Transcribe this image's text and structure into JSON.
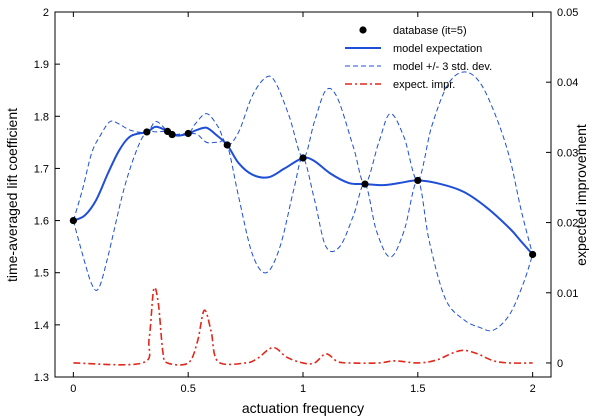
{
  "chart_data": {
    "type": "line",
    "xlabel": "actuation frequency",
    "ylabel_left": "time-averaged lift coefficient",
    "ylabel_right": "expected improvement",
    "xlim": [
      -0.08,
      2.08
    ],
    "ylim_left": [
      1.3,
      2.0
    ],
    "ylim_right": [
      -0.002,
      0.05
    ],
    "x_ticks": [
      0,
      0.5,
      1,
      1.5,
      2
    ],
    "y_left_ticks": [
      1.3,
      1.4,
      1.5,
      1.6,
      1.7,
      1.8,
      1.9,
      2.0
    ],
    "y_right_ticks": [
      0,
      0.01,
      0.02,
      0.03,
      0.04,
      0.05
    ],
    "x_tick_labels": [
      "0",
      "0.5",
      "1",
      "1.5",
      "2"
    ],
    "y_left_tick_labels": [
      "1.3",
      "1.4",
      "1.5",
      "1.6",
      "1.7",
      "1.8",
      "1.9",
      "2"
    ],
    "y_right_tick_labels": [
      "0",
      "0.01",
      "0.02",
      "0.03",
      "0.04",
      "0.05"
    ],
    "grid": false,
    "legend_position": "top-right",
    "series": [
      {
        "name": "database (it=5)",
        "style": "markers",
        "axis": "left",
        "color": "#000000",
        "points": [
          [
            0,
            1.6
          ],
          [
            0.32,
            1.77
          ],
          [
            0.41,
            1.771
          ],
          [
            0.43,
            1.765
          ],
          [
            0.5,
            1.767
          ],
          [
            0.67,
            1.745
          ],
          [
            1.0,
            1.72
          ],
          [
            1.27,
            1.67
          ],
          [
            1.5,
            1.677
          ],
          [
            2.0,
            1.535
          ]
        ]
      },
      {
        "name": "model expectation",
        "style": "solid",
        "axis": "left",
        "color": "#1f4fd6",
        "points": [
          [
            0,
            1.6
          ],
          [
            0.05,
            1.61
          ],
          [
            0.1,
            1.64
          ],
          [
            0.15,
            1.69
          ],
          [
            0.2,
            1.735
          ],
          [
            0.25,
            1.762
          ],
          [
            0.32,
            1.77
          ],
          [
            0.36,
            1.78
          ],
          [
            0.41,
            1.771
          ],
          [
            0.43,
            1.765
          ],
          [
            0.46,
            1.763
          ],
          [
            0.5,
            1.767
          ],
          [
            0.54,
            1.774
          ],
          [
            0.58,
            1.778
          ],
          [
            0.62,
            1.765
          ],
          [
            0.67,
            1.745
          ],
          [
            0.72,
            1.71
          ],
          [
            0.78,
            1.688
          ],
          [
            0.85,
            1.683
          ],
          [
            0.92,
            1.7
          ],
          [
            1.0,
            1.72
          ],
          [
            1.05,
            1.714
          ],
          [
            1.12,
            1.69
          ],
          [
            1.2,
            1.672
          ],
          [
            1.27,
            1.67
          ],
          [
            1.35,
            1.668
          ],
          [
            1.42,
            1.672
          ],
          [
            1.5,
            1.677
          ],
          [
            1.6,
            1.67
          ],
          [
            1.7,
            1.655
          ],
          [
            1.8,
            1.625
          ],
          [
            1.9,
            1.585
          ],
          [
            1.95,
            1.56
          ],
          [
            2.0,
            1.535
          ]
        ]
      },
      {
        "name": "model +/- 3 std. dev.",
        "style": "dashed",
        "axis": "left",
        "color": "#1f4fd6",
        "points": [
          [
            0,
            1.6
          ],
          [
            0.04,
            1.66
          ],
          [
            0.08,
            1.73
          ],
          [
            0.12,
            1.765
          ],
          [
            0.16,
            1.79
          ],
          [
            0.2,
            1.785
          ],
          [
            0.25,
            1.773
          ],
          [
            0.32,
            1.77
          ],
          [
            0.36,
            1.79
          ],
          [
            0.41,
            1.771
          ],
          [
            0.43,
            1.765
          ],
          [
            0.5,
            1.767
          ],
          [
            0.53,
            1.785
          ],
          [
            0.58,
            1.805
          ],
          [
            0.63,
            1.78
          ],
          [
            0.67,
            1.745
          ],
          [
            0.72,
            1.77
          ],
          [
            0.78,
            1.84
          ],
          [
            0.84,
            1.875
          ],
          [
            0.88,
            1.865
          ],
          [
            0.94,
            1.8
          ],
          [
            1.0,
            1.72
          ],
          [
            1.05,
            1.79
          ],
          [
            1.1,
            1.85
          ],
          [
            1.15,
            1.835
          ],
          [
            1.22,
            1.74
          ],
          [
            1.27,
            1.67
          ],
          [
            1.33,
            1.75
          ],
          [
            1.38,
            1.805
          ],
          [
            1.44,
            1.76
          ],
          [
            1.5,
            1.677
          ],
          [
            1.56,
            1.78
          ],
          [
            1.63,
            1.86
          ],
          [
            1.7,
            1.885
          ],
          [
            1.77,
            1.865
          ],
          [
            1.84,
            1.8
          ],
          [
            1.9,
            1.72
          ],
          [
            1.95,
            1.62
          ],
          [
            2.0,
            1.535
          ]
        ]
      },
      {
        "name": "model +/- 3 std. dev. (lower)",
        "style": "dashed",
        "axis": "left",
        "color": "#1f4fd6",
        "points": [
          [
            0,
            1.6
          ],
          [
            0.04,
            1.535
          ],
          [
            0.08,
            1.478
          ],
          [
            0.11,
            1.47
          ],
          [
            0.15,
            1.53
          ],
          [
            0.22,
            1.66
          ],
          [
            0.28,
            1.74
          ],
          [
            0.32,
            1.77
          ],
          [
            0.36,
            1.77
          ],
          [
            0.41,
            1.771
          ],
          [
            0.43,
            1.765
          ],
          [
            0.5,
            1.767
          ],
          [
            0.54,
            1.765
          ],
          [
            0.58,
            1.75
          ],
          [
            0.63,
            1.75
          ],
          [
            0.67,
            1.745
          ],
          [
            0.72,
            1.645
          ],
          [
            0.78,
            1.535
          ],
          [
            0.84,
            1.5
          ],
          [
            0.9,
            1.55
          ],
          [
            0.96,
            1.66
          ],
          [
            1.0,
            1.72
          ],
          [
            1.05,
            1.64
          ],
          [
            1.1,
            1.55
          ],
          [
            1.16,
            1.55
          ],
          [
            1.22,
            1.61
          ],
          [
            1.27,
            1.67
          ],
          [
            1.32,
            1.58
          ],
          [
            1.38,
            1.53
          ],
          [
            1.44,
            1.58
          ],
          [
            1.5,
            1.677
          ],
          [
            1.55,
            1.56
          ],
          [
            1.62,
            1.45
          ],
          [
            1.7,
            1.41
          ],
          [
            1.77,
            1.395
          ],
          [
            1.83,
            1.39
          ],
          [
            1.9,
            1.42
          ],
          [
            1.96,
            1.48
          ],
          [
            2.0,
            1.535
          ]
        ]
      },
      {
        "name": "expect. impr.",
        "style": "dashdot",
        "axis": "right",
        "color": "#e0281b",
        "points": [
          [
            0,
            0
          ],
          [
            0.3,
            0
          ],
          [
            0.33,
            0.0035
          ],
          [
            0.35,
            0.0105
          ],
          [
            0.37,
            0.0085
          ],
          [
            0.39,
            0.0015
          ],
          [
            0.41,
            0
          ],
          [
            0.5,
            0
          ],
          [
            0.54,
            0.003
          ],
          [
            0.57,
            0.0075
          ],
          [
            0.6,
            0.0045
          ],
          [
            0.63,
            0.0002
          ],
          [
            0.75,
            0
          ],
          [
            0.8,
            0.0006
          ],
          [
            0.87,
            0.0022
          ],
          [
            0.93,
            0.0008
          ],
          [
            1.0,
            0
          ],
          [
            1.05,
            0
          ],
          [
            1.1,
            0.0013
          ],
          [
            1.15,
            0.0002
          ],
          [
            1.2,
            0
          ],
          [
            1.33,
            0
          ],
          [
            1.4,
            0.0003
          ],
          [
            1.5,
            0
          ],
          [
            1.58,
            0.0004
          ],
          [
            1.65,
            0.0014
          ],
          [
            1.7,
            0.0018
          ],
          [
            1.76,
            0.0013
          ],
          [
            1.83,
            0.0003
          ],
          [
            1.9,
            0
          ],
          [
            2.0,
            0
          ]
        ]
      }
    ],
    "legend": [
      {
        "label": "database (it=5)",
        "marker": "dot",
        "color": "#000000"
      },
      {
        "label": "model expectation",
        "style": "solid",
        "color": "#1f4fd6"
      },
      {
        "label": "model +/- 3 std. dev.",
        "style": "dashed",
        "color": "#1f4fd6"
      },
      {
        "label": "expect. impr.",
        "style": "dashdot",
        "color": "#e0281b"
      }
    ]
  }
}
